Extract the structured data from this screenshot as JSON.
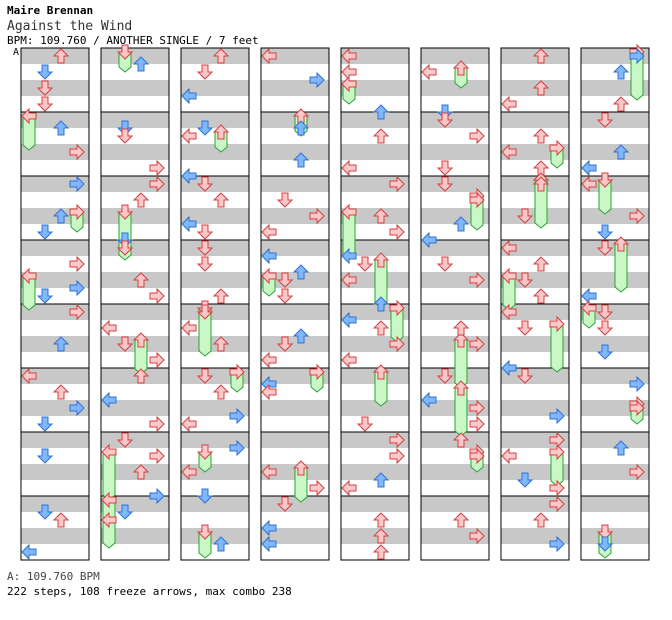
{
  "header": {
    "artist": "Maire Brennan",
    "title": "Against the Wind",
    "meta": "BPM: 109.760 / ANOTHER SINGLE / 7 feet",
    "marker": "A"
  },
  "footer": {
    "bpm": "A: 109.760 BPM",
    "stats": "222 steps, 108 freeze arrows, max combo 238"
  },
  "colors": {
    "stripe": "#c8c8c8",
    "border": "#000000",
    "arrow_red_fill": "#ffc8c8",
    "arrow_red_stroke": "#d04040",
    "arrow_blue_fill": "#80b8ff",
    "arrow_blue_stroke": "#3070d0",
    "freeze_fill": "#c8f8c8",
    "freeze_stroke": "#30a030"
  },
  "chart": {
    "columns": 8,
    "measures_per_column": 8,
    "lanes": [
      "left",
      "down",
      "up",
      "right"
    ]
  }
}
